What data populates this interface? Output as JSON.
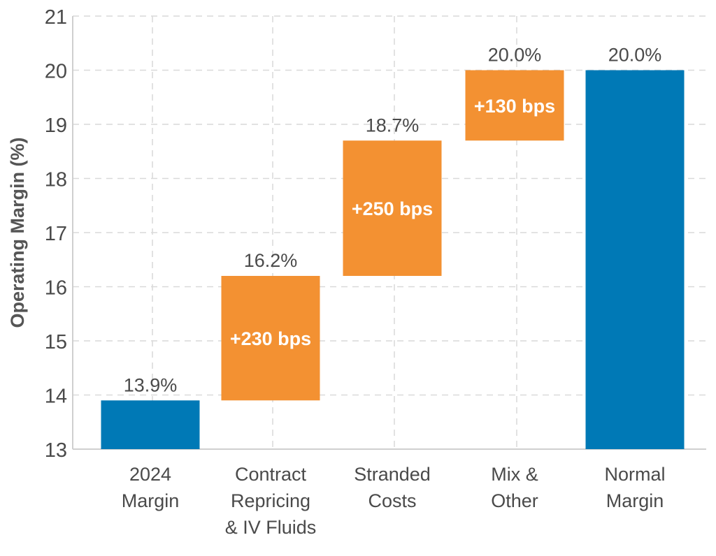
{
  "chart_data": {
    "type": "waterfall",
    "title": "",
    "xlabel": "",
    "ylabel": "Operating Margin (%)",
    "ylim": [
      13,
      21
    ],
    "yticks": [
      13,
      14,
      15,
      16,
      17,
      18,
      19,
      20,
      21
    ],
    "grid": true,
    "categories": [
      [
        "2024",
        "Margin"
      ],
      [
        "Contract",
        "Repricing",
        "& IV Fluids"
      ],
      [
        "Stranded",
        "Costs"
      ],
      [
        "Mix &",
        "Other"
      ],
      [
        "Normal",
        "Margin"
      ]
    ],
    "bars": [
      {
        "kind": "total",
        "start": 13,
        "end": 13.9,
        "label": "13.9%",
        "inner_label": ""
      },
      {
        "kind": "increase",
        "start": 13.9,
        "end": 16.2,
        "label": "16.2%",
        "inner_label": "+230 bps"
      },
      {
        "kind": "increase",
        "start": 16.2,
        "end": 18.7,
        "label": "18.7%",
        "inner_label": "+250 bps"
      },
      {
        "kind": "increase",
        "start": 18.7,
        "end": 20.0,
        "label": "20.0%",
        "inner_label": "+130 bps"
      },
      {
        "kind": "total",
        "start": 13,
        "end": 20.0,
        "label": "20.0%",
        "inner_label": ""
      }
    ],
    "colors": {
      "total": "#0079b6",
      "increase": "#f39132",
      "text": "#4a4a4a",
      "grid": "#d9d9d9"
    }
  }
}
